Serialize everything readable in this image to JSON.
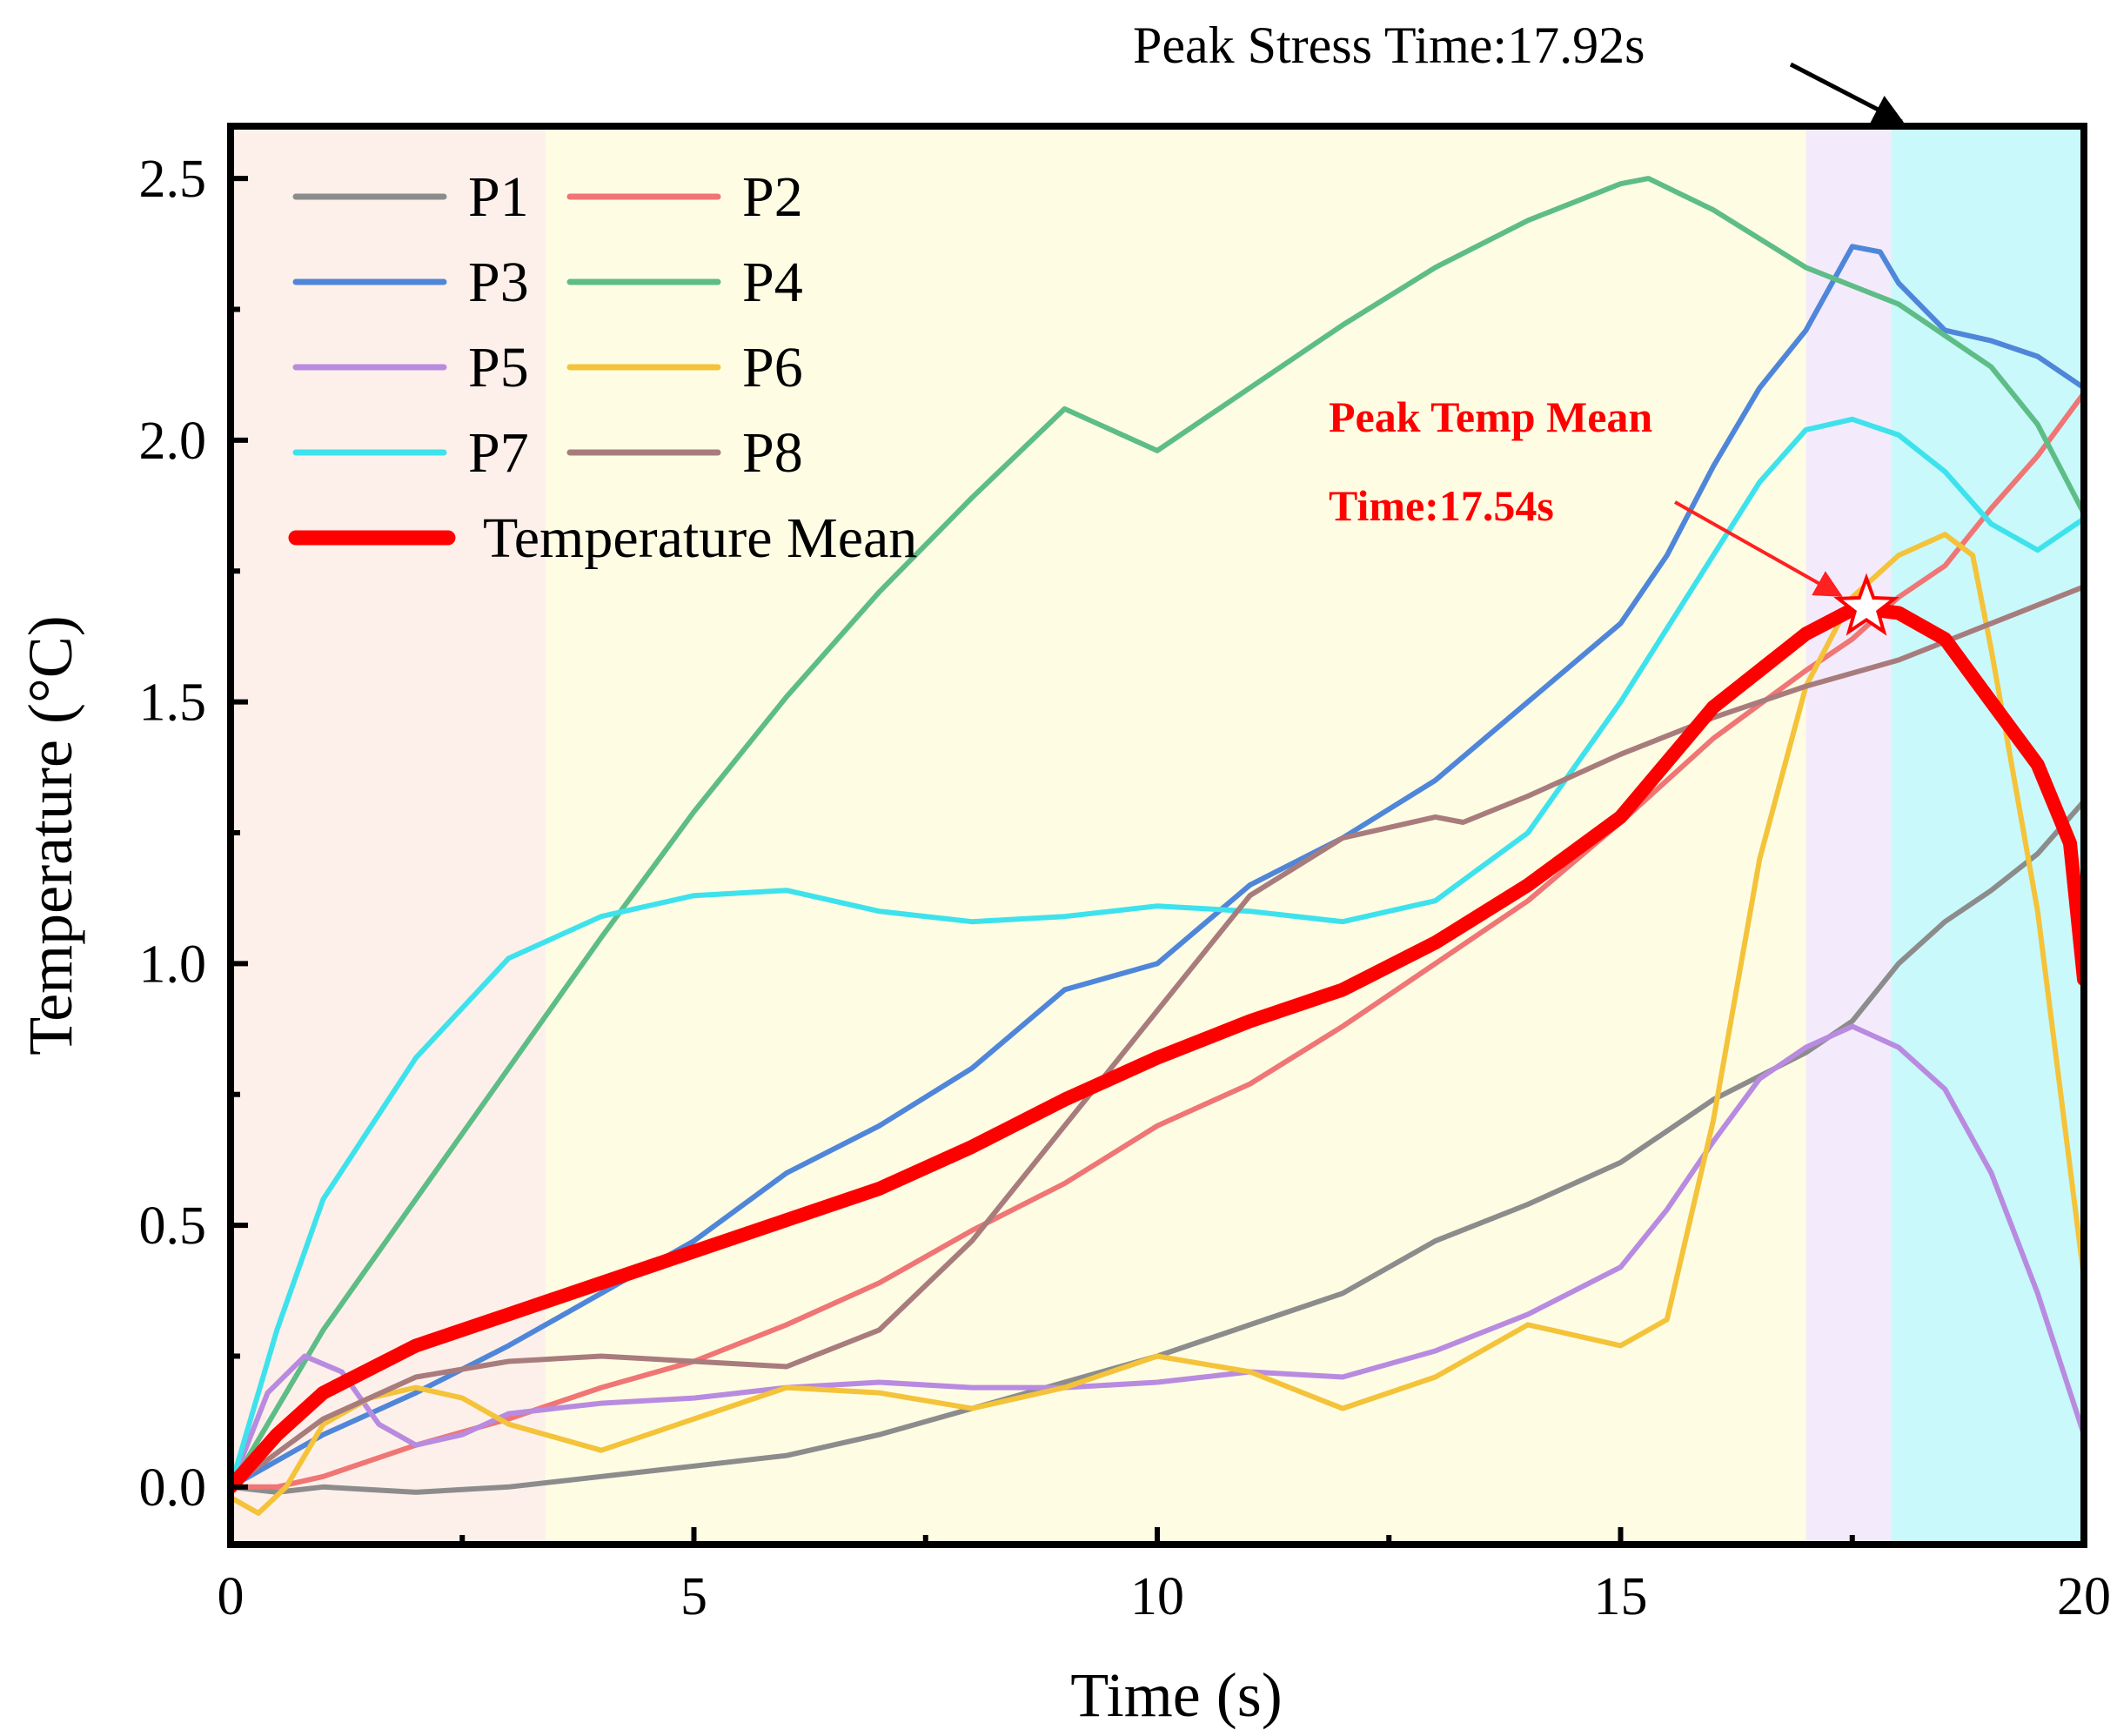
{
  "chart_data": {
    "type": "line",
    "title": "",
    "xlabel": "Time (s)",
    "ylabel": "Temperature (°C)",
    "xlim": [
      0,
      20
    ],
    "ylim": [
      -0.11,
      2.6
    ],
    "x_ticks": [
      "0",
      "5",
      "10",
      "15",
      "20"
    ],
    "y_ticks": [
      "0.0",
      "0.5",
      "1.0",
      "1.5",
      "2.0",
      "2.5"
    ],
    "grid": false,
    "legend_position": "top-left",
    "phases": [
      {
        "x0": 0,
        "x1": 3.4,
        "color": "#fdf0ea"
      },
      {
        "x0": 3.4,
        "x1": 17.0,
        "color": "#fefde4"
      },
      {
        "x0": 17.0,
        "x1": 17.92,
        "color": "#f3ebfb"
      },
      {
        "x0": 17.92,
        "x1": 20,
        "color": "#c9f9fb"
      }
    ],
    "annotations": {
      "peak_stress": {
        "label": "Peak Stress Time:17.92s",
        "x": 17.92
      },
      "peak_temp_line1": "Peak Temp Mean",
      "peak_temp_line2": "Time:17.54s",
      "peak_temp_point": {
        "x": 17.54,
        "y": 1.68
      }
    },
    "series": [
      {
        "name": "P1",
        "color": "#8c8c8c",
        "width": 6,
        "points": [
          [
            0,
            0
          ],
          [
            0.5,
            -0.01
          ],
          [
            1,
            0
          ],
          [
            2,
            -0.01
          ],
          [
            3,
            0
          ],
          [
            4,
            0.02
          ],
          [
            5,
            0.04
          ],
          [
            6,
            0.06
          ],
          [
            7,
            0.1
          ],
          [
            8,
            0.15
          ],
          [
            9,
            0.2
          ],
          [
            10,
            0.25
          ],
          [
            11,
            0.31
          ],
          [
            12,
            0.37
          ],
          [
            13,
            0.47
          ],
          [
            14,
            0.54
          ],
          [
            15,
            0.62
          ],
          [
            16,
            0.74
          ],
          [
            17,
            0.83
          ],
          [
            17.5,
            0.89
          ],
          [
            18,
            1.0
          ],
          [
            18.5,
            1.08
          ],
          [
            19,
            1.14
          ],
          [
            19.5,
            1.21
          ],
          [
            20,
            1.31
          ]
        ]
      },
      {
        "name": "P2",
        "color": "#f07575",
        "width": 6,
        "points": [
          [
            0,
            0
          ],
          [
            0.5,
            0
          ],
          [
            1,
            0.02
          ],
          [
            2,
            0.08
          ],
          [
            3,
            0.13
          ],
          [
            4,
            0.19
          ],
          [
            5,
            0.24
          ],
          [
            6,
            0.31
          ],
          [
            7,
            0.39
          ],
          [
            8,
            0.49
          ],
          [
            9,
            0.58
          ],
          [
            10,
            0.69
          ],
          [
            11,
            0.77
          ],
          [
            12,
            0.88
          ],
          [
            13,
            1.0
          ],
          [
            14,
            1.12
          ],
          [
            15,
            1.27
          ],
          [
            16,
            1.43
          ],
          [
            17,
            1.56
          ],
          [
            17.5,
            1.62
          ],
          [
            18,
            1.7
          ],
          [
            18.5,
            1.76
          ],
          [
            19,
            1.87
          ],
          [
            19.5,
            1.97
          ],
          [
            20,
            2.09
          ]
        ]
      },
      {
        "name": "P3",
        "color": "#4f86d9",
        "width": 6,
        "points": [
          [
            0,
            0
          ],
          [
            0.5,
            0.05
          ],
          [
            1,
            0.1
          ],
          [
            2,
            0.18
          ],
          [
            3,
            0.27
          ],
          [
            4,
            0.37
          ],
          [
            5,
            0.47
          ],
          [
            6,
            0.6
          ],
          [
            7,
            0.69
          ],
          [
            8,
            0.8
          ],
          [
            9,
            0.95
          ],
          [
            10,
            1.0
          ],
          [
            11,
            1.15
          ],
          [
            12,
            1.24
          ],
          [
            13,
            1.35
          ],
          [
            14,
            1.5
          ],
          [
            15,
            1.65
          ],
          [
            15.5,
            1.78
          ],
          [
            16,
            1.95
          ],
          [
            16.5,
            2.1
          ],
          [
            17,
            2.21
          ],
          [
            17.5,
            2.37
          ],
          [
            17.8,
            2.36
          ],
          [
            18,
            2.3
          ],
          [
            18.5,
            2.21
          ],
          [
            19,
            2.19
          ],
          [
            19.5,
            2.16
          ],
          [
            20,
            2.1
          ]
        ]
      },
      {
        "name": "P4",
        "color": "#5ebd86",
        "width": 6,
        "points": [
          [
            0,
            0
          ],
          [
            1,
            0.3
          ],
          [
            2,
            0.55
          ],
          [
            3,
            0.8
          ],
          [
            4,
            1.05
          ],
          [
            5,
            1.29
          ],
          [
            6,
            1.51
          ],
          [
            7,
            1.71
          ],
          [
            8,
            1.89
          ],
          [
            9,
            2.06
          ],
          [
            10,
            1.98
          ],
          [
            11,
            2.1
          ],
          [
            12,
            2.22
          ],
          [
            13,
            2.33
          ],
          [
            14,
            2.42
          ],
          [
            15,
            2.49
          ],
          [
            15.3,
            2.5
          ],
          [
            16,
            2.44
          ],
          [
            17,
            2.33
          ],
          [
            18,
            2.26
          ],
          [
            18.5,
            2.2
          ],
          [
            19,
            2.14
          ],
          [
            19.5,
            2.03
          ],
          [
            20,
            1.86
          ]
        ]
      },
      {
        "name": "P5",
        "color": "#b88be0",
        "width": 6,
        "points": [
          [
            0,
            0
          ],
          [
            0.4,
            0.18
          ],
          [
            0.8,
            0.25
          ],
          [
            1.2,
            0.22
          ],
          [
            1.6,
            0.12
          ],
          [
            2,
            0.08
          ],
          [
            2.5,
            0.1
          ],
          [
            3,
            0.14
          ],
          [
            4,
            0.16
          ],
          [
            5,
            0.17
          ],
          [
            6,
            0.19
          ],
          [
            7,
            0.2
          ],
          [
            8,
            0.19
          ],
          [
            9,
            0.19
          ],
          [
            10,
            0.2
          ],
          [
            11,
            0.22
          ],
          [
            12,
            0.21
          ],
          [
            13,
            0.26
          ],
          [
            14,
            0.33
          ],
          [
            15,
            0.42
          ],
          [
            15.5,
            0.53
          ],
          [
            16,
            0.66
          ],
          [
            16.5,
            0.78
          ],
          [
            17,
            0.84
          ],
          [
            17.5,
            0.88
          ],
          [
            18,
            0.84
          ],
          [
            18.5,
            0.76
          ],
          [
            19,
            0.6
          ],
          [
            19.5,
            0.37
          ],
          [
            20,
            0.1
          ]
        ]
      },
      {
        "name": "P6",
        "color": "#f4c33a",
        "width": 6,
        "points": [
          [
            0,
            -0.02
          ],
          [
            0.3,
            -0.05
          ],
          [
            0.6,
            0
          ],
          [
            1,
            0.12
          ],
          [
            1.5,
            0.17
          ],
          [
            2,
            0.19
          ],
          [
            2.5,
            0.17
          ],
          [
            3,
            0.12
          ],
          [
            4,
            0.07
          ],
          [
            5,
            0.13
          ],
          [
            6,
            0.19
          ],
          [
            7,
            0.18
          ],
          [
            8,
            0.15
          ],
          [
            9,
            0.19
          ],
          [
            10,
            0.25
          ],
          [
            11,
            0.22
          ],
          [
            12,
            0.15
          ],
          [
            13,
            0.21
          ],
          [
            14,
            0.31
          ],
          [
            15,
            0.27
          ],
          [
            15.5,
            0.32
          ],
          [
            16,
            0.7
          ],
          [
            16.5,
            1.2
          ],
          [
            17,
            1.53
          ],
          [
            17.5,
            1.7
          ],
          [
            18,
            1.78
          ],
          [
            18.5,
            1.82
          ],
          [
            18.8,
            1.78
          ],
          [
            19,
            1.6
          ],
          [
            19.5,
            1.1
          ],
          [
            20,
            0.4
          ]
        ]
      },
      {
        "name": "P7",
        "color": "#3ee2ec",
        "width": 6,
        "points": [
          [
            0,
            0
          ],
          [
            0.5,
            0.3
          ],
          [
            1,
            0.55
          ],
          [
            2,
            0.82
          ],
          [
            3,
            1.01
          ],
          [
            4,
            1.09
          ],
          [
            5,
            1.13
          ],
          [
            6,
            1.14
          ],
          [
            7,
            1.1
          ],
          [
            8,
            1.08
          ],
          [
            9,
            1.09
          ],
          [
            10,
            1.11
          ],
          [
            11,
            1.1
          ],
          [
            12,
            1.08
          ],
          [
            13,
            1.12
          ],
          [
            14,
            1.25
          ],
          [
            15,
            1.5
          ],
          [
            16,
            1.78
          ],
          [
            16.5,
            1.92
          ],
          [
            17,
            2.02
          ],
          [
            17.5,
            2.04
          ],
          [
            18,
            2.01
          ],
          [
            18.5,
            1.94
          ],
          [
            19,
            1.84
          ],
          [
            19.5,
            1.79
          ],
          [
            20,
            1.85
          ]
        ]
      },
      {
        "name": "P8",
        "color": "#a87c7c",
        "width": 6,
        "points": [
          [
            0,
            0
          ],
          [
            1,
            0.13
          ],
          [
            2,
            0.21
          ],
          [
            3,
            0.24
          ],
          [
            4,
            0.25
          ],
          [
            5,
            0.24
          ],
          [
            6,
            0.23
          ],
          [
            7,
            0.3
          ],
          [
            8,
            0.47
          ],
          [
            9,
            0.69
          ],
          [
            10,
            0.91
          ],
          [
            11,
            1.13
          ],
          [
            12,
            1.24
          ],
          [
            13,
            1.28
          ],
          [
            13.3,
            1.27
          ],
          [
            14,
            1.32
          ],
          [
            15,
            1.4
          ],
          [
            16,
            1.47
          ],
          [
            17,
            1.53
          ],
          [
            18,
            1.58
          ],
          [
            19,
            1.65
          ],
          [
            20,
            1.72
          ]
        ]
      },
      {
        "name": "Temperature Mean",
        "color": "#ff0000",
        "width": 16,
        "points": [
          [
            0,
            0
          ],
          [
            0.5,
            0.1
          ],
          [
            1,
            0.18
          ],
          [
            2,
            0.27
          ],
          [
            3,
            0.33
          ],
          [
            4,
            0.39
          ],
          [
            5,
            0.45
          ],
          [
            6,
            0.51
          ],
          [
            7,
            0.57
          ],
          [
            8,
            0.65
          ],
          [
            9,
            0.74
          ],
          [
            10,
            0.82
          ],
          [
            11,
            0.89
          ],
          [
            12,
            0.95
          ],
          [
            13,
            1.04
          ],
          [
            14,
            1.15
          ],
          [
            15,
            1.28
          ],
          [
            16,
            1.49
          ],
          [
            17,
            1.63
          ],
          [
            17.54,
            1.68
          ],
          [
            18,
            1.67
          ],
          [
            18.5,
            1.62
          ],
          [
            19,
            1.5
          ],
          [
            19.5,
            1.38
          ],
          [
            19.85,
            1.23
          ],
          [
            20,
            0.97
          ]
        ]
      }
    ]
  }
}
